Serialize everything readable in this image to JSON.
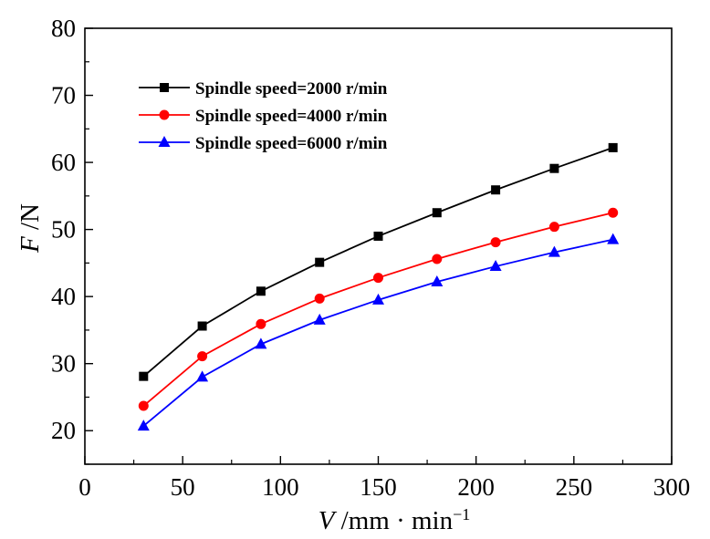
{
  "chart_data": {
    "type": "line",
    "x": [
      30,
      60,
      90,
      120,
      150,
      180,
      210,
      240,
      270
    ],
    "series": [
      {
        "name": "Spindle speed=2000 r/min",
        "color": "#000000",
        "marker": "square",
        "values": [
          28.1,
          35.6,
          40.8,
          45.1,
          49.0,
          52.5,
          55.9,
          59.1,
          62.2
        ]
      },
      {
        "name": "Spindle speed=4000 r/min",
        "color": "#ff0000",
        "marker": "circle",
        "values": [
          23.7,
          31.1,
          35.9,
          39.7,
          42.8,
          45.6,
          48.1,
          50.4,
          52.5
        ]
      },
      {
        "name": "Spindle speed=6000 r/min",
        "color": "#0000ff",
        "marker": "triangle",
        "values": [
          20.7,
          28.0,
          32.9,
          36.5,
          39.5,
          42.2,
          44.5,
          46.6,
          48.5
        ]
      }
    ],
    "xlim": [
      0,
      300
    ],
    "ylim": [
      15,
      80
    ],
    "xticks": [
      0,
      50,
      100,
      150,
      200,
      250,
      300
    ],
    "yticks": [
      20,
      30,
      40,
      50,
      60,
      70,
      80
    ],
    "xlabel": {
      "symbol": "V",
      "unit": " /mm · min",
      "sup": "−1"
    },
    "ylabel": {
      "symbol": "F",
      "unit": " /N"
    },
    "grid": false,
    "legend_position": "top-left"
  }
}
